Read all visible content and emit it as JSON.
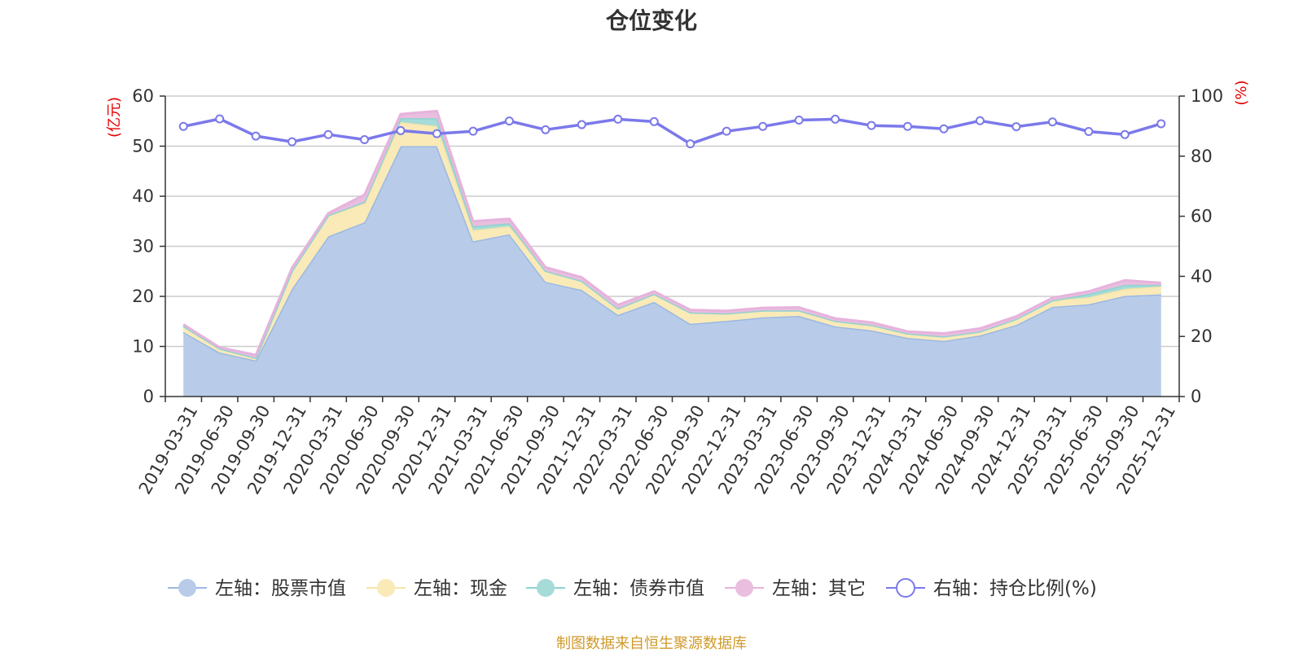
{
  "title": "仓位变化",
  "source": "制图数据来自恒生聚源数据库",
  "chart_data": {
    "type": "area",
    "stacked": true,
    "categories": [
      "2019-03-31",
      "2019-06-30",
      "2019-09-30",
      "2019-12-31",
      "2020-03-31",
      "2020-06-30",
      "2020-09-30",
      "2020-12-31",
      "2021-03-31",
      "2021-06-30",
      "2021-09-30",
      "2021-12-31",
      "2022-03-31",
      "2022-06-30",
      "2022-09-30",
      "2022-12-31",
      "2023-03-31",
      "2023-06-30",
      "2023-09-30",
      "2023-12-31",
      "2024-03-31",
      "2024-06-30",
      "2024-09-30",
      "2024-12-31",
      "2025-03-31",
      "2025-06-30",
      "2025-09-30",
      "2025-12-31"
    ],
    "left_axis": {
      "unit": "(亿元)",
      "ylim": [
        0,
        60
      ],
      "ticks": [
        "0",
        "10",
        "20",
        "30",
        "40",
        "50",
        "60"
      ]
    },
    "right_axis": {
      "unit": "(%)",
      "ylim": [
        0,
        100
      ],
      "ticks": [
        "0",
        "20",
        "40",
        "60",
        "80",
        "100"
      ]
    },
    "series": [
      {
        "name": "左轴：股票市值",
        "axis": "left",
        "color": "#9bb8e3",
        "fill": "#b8cce9",
        "values": [
          12.9,
          8.8,
          7.2,
          21.5,
          32.0,
          34.8,
          50.0,
          50.0,
          31.0,
          32.4,
          22.9,
          21.3,
          16.3,
          18.9,
          14.5,
          15.1,
          15.8,
          16.1,
          14.0,
          13.2,
          11.7,
          11.1,
          12.2,
          14.3,
          17.9,
          18.4,
          20.1,
          20.4
        ]
      },
      {
        "name": "左轴：现金",
        "axis": "left",
        "color": "#f8e5a8",
        "fill": "#f9eab8",
        "values": [
          1.2,
          0.8,
          0.5,
          3.6,
          4.2,
          3.8,
          4.8,
          4.0,
          2.2,
          1.6,
          2.2,
          1.8,
          1.3,
          1.6,
          2.3,
          1.5,
          1.4,
          1.1,
          1.1,
          1.1,
          0.9,
          0.9,
          0.8,
          1.2,
          1.3,
          1.4,
          1.4,
          1.6
        ]
      },
      {
        "name": "左轴：债券市值",
        "axis": "left",
        "color": "#8fd2cf",
        "fill": "#a6dbd8",
        "values": [
          0,
          0,
          0,
          0,
          0,
          0.3,
          0.8,
          1.6,
          0.8,
          0.6,
          0,
          0,
          0,
          0,
          0,
          0,
          0,
          0,
          0,
          0,
          0,
          0,
          0,
          0,
          0,
          0.7,
          0.8,
          0.3
        ]
      },
      {
        "name": "左轴：其它",
        "axis": "left",
        "color": "#e6b3dc",
        "fill": "#e9bedf",
        "values": [
          0.3,
          0.2,
          0.6,
          0.6,
          0.4,
          1.4,
          0.8,
          1.4,
          1.0,
          0.9,
          0.7,
          0.7,
          0.7,
          0.5,
          0.5,
          0.5,
          0.5,
          0.6,
          0.5,
          0.5,
          0.4,
          0.6,
          0.6,
          0.5,
          0.5,
          0.5,
          0.9,
          0.4
        ]
      },
      {
        "name": "右轴：持仓比例(%)",
        "axis": "right",
        "type": "line",
        "color": "#7b79ea",
        "values": [
          89.9,
          92.4,
          86.7,
          84.8,
          87.2,
          85.5,
          88.5,
          87.5,
          88.3,
          91.7,
          88.8,
          90.5,
          92.3,
          91.5,
          84.1,
          88.3,
          89.9,
          92.0,
          92.3,
          90.2,
          89.9,
          89.1,
          91.8,
          89.8,
          91.4,
          88.2,
          87.2,
          90.8
        ]
      }
    ]
  }
}
